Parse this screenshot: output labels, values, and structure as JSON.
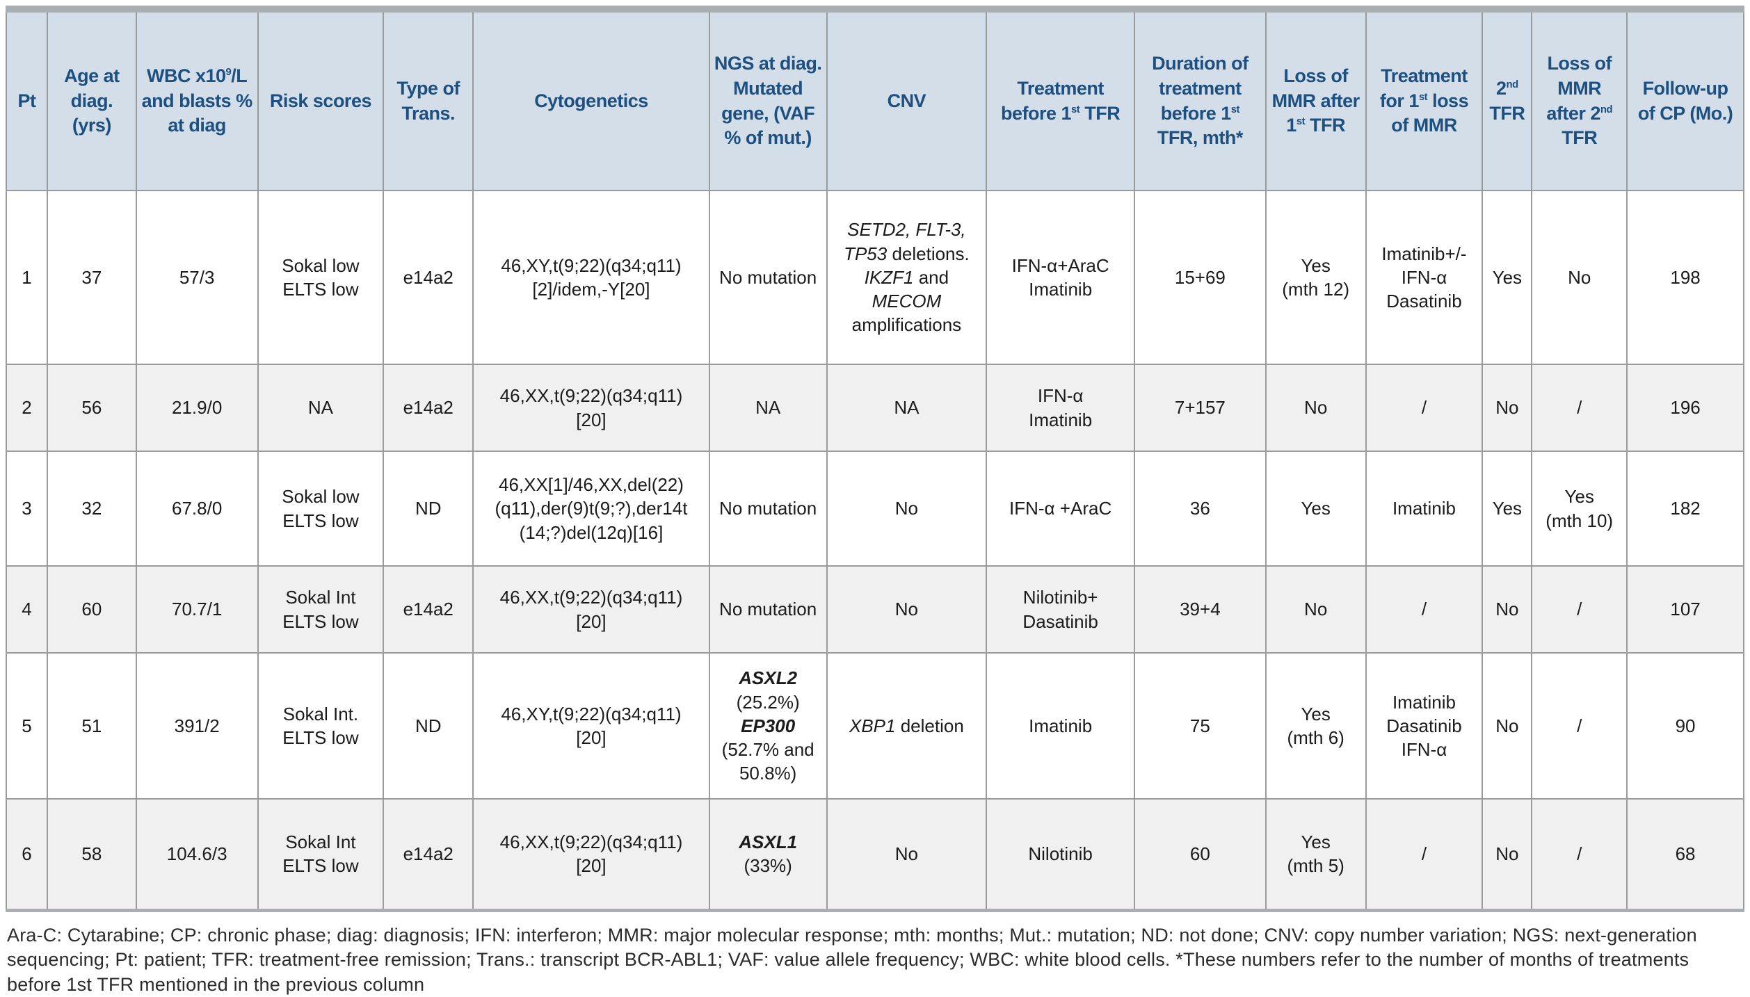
{
  "colors": {
    "header_bg": "#d3dee9",
    "header_text": "#1d5081",
    "row_alt_bg": "#f0f0f0",
    "row_bg": "#ffffff",
    "grid_border": "#9b9b9b",
    "outer_border": "#a9aeb3",
    "body_text": "#1b1b1b"
  },
  "table": {
    "columns": [
      {
        "id": "pt",
        "label": [
          {
            "t": "Pt"
          }
        ]
      },
      {
        "id": "age",
        "label": [
          {
            "t": "Age at diag. (yrs)"
          }
        ]
      },
      {
        "id": "wbc",
        "label": [
          {
            "t": "WBC x10"
          },
          {
            "t": "9",
            "s": "sup"
          },
          {
            "t": "/L and blasts % at diag"
          }
        ]
      },
      {
        "id": "risk",
        "label": [
          {
            "t": "Risk scores"
          }
        ]
      },
      {
        "id": "trans",
        "label": [
          {
            "t": "Type of Trans."
          }
        ]
      },
      {
        "id": "cytogenetics",
        "label": [
          {
            "t": "Cytogenetics"
          }
        ]
      },
      {
        "id": "ngs",
        "label": [
          {
            "t": "NGS at diag. Mutated gene, (VAF % of mut.)"
          }
        ]
      },
      {
        "id": "cnv",
        "label": [
          {
            "t": "CNV"
          }
        ]
      },
      {
        "id": "treatment-before-1st-tfr",
        "label": [
          {
            "t": "Treatment before 1"
          },
          {
            "t": "st",
            "s": "sup"
          },
          {
            "t": " TFR"
          }
        ]
      },
      {
        "id": "duration-before-1st-tfr",
        "label": [
          {
            "t": "Duration of treatment before 1"
          },
          {
            "t": "st",
            "s": "sup"
          },
          {
            "t": " TFR, mth*"
          }
        ]
      },
      {
        "id": "loss-mmr-after-1st-tfr",
        "label": [
          {
            "t": "Loss of MMR after 1"
          },
          {
            "t": "st",
            "s": "sup"
          },
          {
            "t": " TFR"
          }
        ]
      },
      {
        "id": "treatment-1st-loss-mmr",
        "label": [
          {
            "t": "Treatment for 1"
          },
          {
            "t": "st",
            "s": "sup"
          },
          {
            "t": " loss of MMR"
          }
        ]
      },
      {
        "id": "2nd-tfr",
        "label": [
          {
            "t": "2"
          },
          {
            "t": "nd",
            "s": "sup"
          },
          {
            "t": " TFR"
          }
        ]
      },
      {
        "id": "loss-mmr-after-2nd-tfr",
        "label": [
          {
            "t": "Loss of MMR after 2"
          },
          {
            "t": "nd",
            "s": "sup"
          },
          {
            "t": " TFR"
          }
        ]
      },
      {
        "id": "follow-up",
        "label": [
          {
            "t": "Follow-up of CP (Mo.)"
          }
        ]
      }
    ],
    "rows": [
      {
        "cells": [
          "1",
          "37",
          "57/3",
          [
            {
              "t": "Sokal low"
            },
            {
              "br": true
            },
            {
              "t": "ELTS low"
            }
          ],
          "e14a2",
          [
            {
              "t": "46,XY,t(9;22)(q34;q11)"
            },
            {
              "br": true
            },
            {
              "t": "[2]/idem,-Y[20]"
            }
          ],
          "No mutation",
          [
            {
              "t": "SETD2, FLT-3,",
              "s": "i"
            },
            {
              "br": true
            },
            {
              "t": "TP53",
              "s": "i"
            },
            {
              "t": " deletions."
            },
            {
              "br": true
            },
            {
              "t": "IKZF1",
              "s": "i"
            },
            {
              "t": " and"
            },
            {
              "br": true
            },
            {
              "t": "MECOM",
              "s": "i"
            },
            {
              "br": true
            },
            {
              "t": "amplifications"
            }
          ],
          [
            {
              "t": "IFN-α+AraC"
            },
            {
              "br": true
            },
            {
              "t": "Imatinib"
            }
          ],
          "15+69",
          [
            {
              "t": "Yes"
            },
            {
              "br": true
            },
            {
              "t": "(mth 12)"
            }
          ],
          [
            {
              "t": "Imatinib+/-"
            },
            {
              "br": true
            },
            {
              "t": "IFN-α"
            },
            {
              "br": true
            },
            {
              "t": "Dasatinib"
            }
          ],
          "Yes",
          "No",
          "198"
        ]
      },
      {
        "cells": [
          "2",
          "56",
          "21.9/0",
          "NA",
          "e14a2",
          [
            {
              "t": "46,XX,t(9;22)(q34;q11)"
            },
            {
              "br": true
            },
            {
              "t": "[20]"
            }
          ],
          "NA",
          "NA",
          [
            {
              "t": "IFN-α"
            },
            {
              "br": true
            },
            {
              "t": "Imatinib"
            }
          ],
          "7+157",
          "No",
          "/",
          "No",
          "/",
          "196"
        ]
      },
      {
        "cells": [
          "3",
          "32",
          "67.8/0",
          [
            {
              "t": "Sokal low"
            },
            {
              "br": true
            },
            {
              "t": "ELTS low"
            }
          ],
          "ND",
          [
            {
              "t": "46,XX[1]/46,XX,del(22)"
            },
            {
              "br": true
            },
            {
              "t": "(q11),der(9)t(9;?),der14t"
            },
            {
              "br": true
            },
            {
              "t": "(14;?)del(12q)[16]"
            }
          ],
          "No mutation",
          "No",
          "IFN-α +AraC",
          "36",
          "Yes",
          "Imatinib",
          "Yes",
          [
            {
              "t": "Yes"
            },
            {
              "br": true
            },
            {
              "t": "(mth 10)"
            }
          ],
          "182"
        ]
      },
      {
        "cells": [
          "4",
          "60",
          "70.7/1",
          [
            {
              "t": "Sokal Int"
            },
            {
              "br": true
            },
            {
              "t": "ELTS low"
            }
          ],
          "e14a2",
          [
            {
              "t": "46,XX,t(9;22)(q34;q11)"
            },
            {
              "br": true
            },
            {
              "t": "[20]"
            }
          ],
          "No mutation",
          "No",
          [
            {
              "t": "Nilotinib+"
            },
            {
              "br": true
            },
            {
              "t": "Dasatinib"
            }
          ],
          "39+4",
          "No",
          "/",
          "No",
          "/",
          "107"
        ]
      },
      {
        "cells": [
          "5",
          "51",
          "391/2",
          [
            {
              "t": "Sokal Int."
            },
            {
              "br": true
            },
            {
              "t": "ELTS low"
            }
          ],
          "ND",
          [
            {
              "t": "46,XY,t(9;22)(q34;q11)"
            },
            {
              "br": true
            },
            {
              "t": "[20]"
            }
          ],
          [
            {
              "t": "ASXL2",
              "s": "bi"
            },
            {
              "br": true
            },
            {
              "t": "(25.2%)"
            },
            {
              "br": true
            },
            {
              "t": "EP300",
              "s": "bi"
            },
            {
              "br": true
            },
            {
              "t": "(52.7% and"
            },
            {
              "br": true
            },
            {
              "t": "50.8%)"
            }
          ],
          [
            {
              "t": "XBP1",
              "s": "i"
            },
            {
              "t": " deletion"
            }
          ],
          "Imatinib",
          "75",
          [
            {
              "t": "Yes"
            },
            {
              "br": true
            },
            {
              "t": "(mth 6)"
            }
          ],
          [
            {
              "t": "Imatinib"
            },
            {
              "br": true
            },
            {
              "t": "Dasatinib"
            },
            {
              "br": true
            },
            {
              "t": "IFN-α"
            }
          ],
          "No",
          "/",
          "90"
        ]
      },
      {
        "cells": [
          "6",
          "58",
          "104.6/3",
          [
            {
              "t": "Sokal Int"
            },
            {
              "br": true
            },
            {
              "t": "ELTS low"
            }
          ],
          "e14a2",
          [
            {
              "t": "46,XX,t(9;22)(q34;q11)"
            },
            {
              "br": true
            },
            {
              "t": "[20]"
            }
          ],
          [
            {
              "t": "ASXL1",
              "s": "bi"
            },
            {
              "br": true
            },
            {
              "t": "(33%)"
            }
          ],
          "No",
          "Nilotinib",
          "60",
          [
            {
              "t": "Yes"
            },
            {
              "br": true
            },
            {
              "t": "(mth 5)"
            }
          ],
          "/",
          "No",
          "/",
          "68"
        ]
      }
    ]
  },
  "footnote": "Ara-C: Cytarabine; CP: chronic phase; diag: diagnosis; IFN: interferon; MMR: major molecular response; mth: months; Mut.: mutation; ND: not done; CNV: copy number variation; NGS: next-generation sequencing; Pt: patient; TFR: treatment-free remission; Trans.: transcript BCR-ABL1; VAF: value allele frequency; WBC: white blood cells. *These numbers refer to the number of months of treatments before 1st TFR mentioned in the previous column"
}
